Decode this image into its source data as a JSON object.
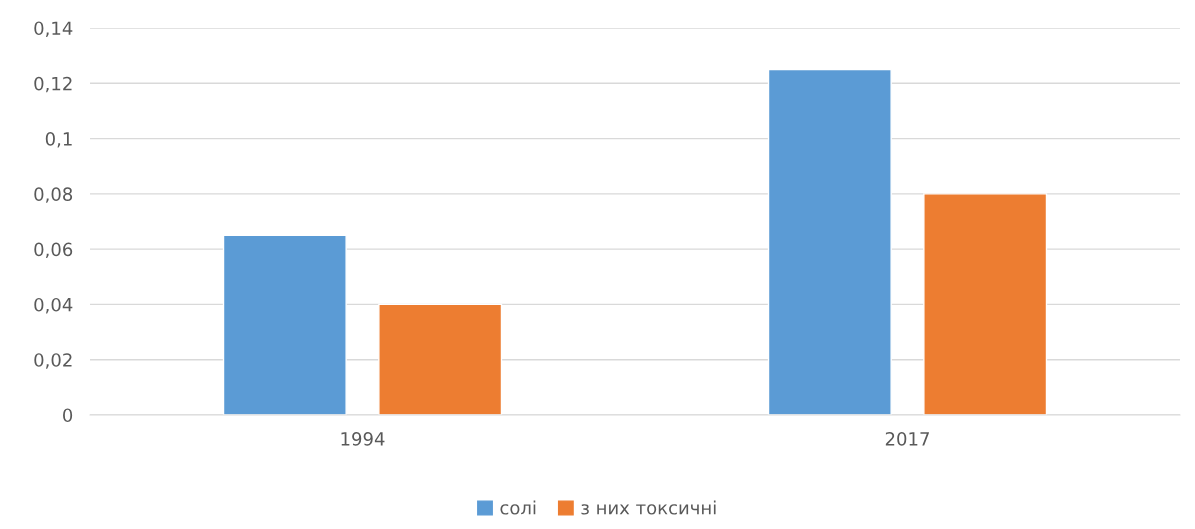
{
  "chart_data": {
    "type": "bar",
    "categories": [
      "1994",
      "2017"
    ],
    "series": [
      {
        "name": "солі",
        "color": "#5b9bd5",
        "values": [
          0.065,
          0.125
        ]
      },
      {
        "name": "з них токсичні",
        "color": "#ed7d31",
        "values": [
          0.04,
          0.08
        ]
      }
    ],
    "ylim": [
      0,
      0.14
    ],
    "yticks": [
      0,
      {
        "value": 0.02,
        "label": "0,02"
      },
      {
        "value": 0.04,
        "label": "0,04"
      },
      {
        "value": 0.06,
        "label": "0,06"
      },
      {
        "value": 0.08,
        "label": "0,08"
      },
      {
        "value": 0.1,
        "label": "0,1"
      },
      {
        "value": 0.12,
        "label": "0,12"
      },
      {
        "value": 0.14,
        "label": "0,14"
      }
    ],
    "grid": "y",
    "legend": "bottom"
  }
}
